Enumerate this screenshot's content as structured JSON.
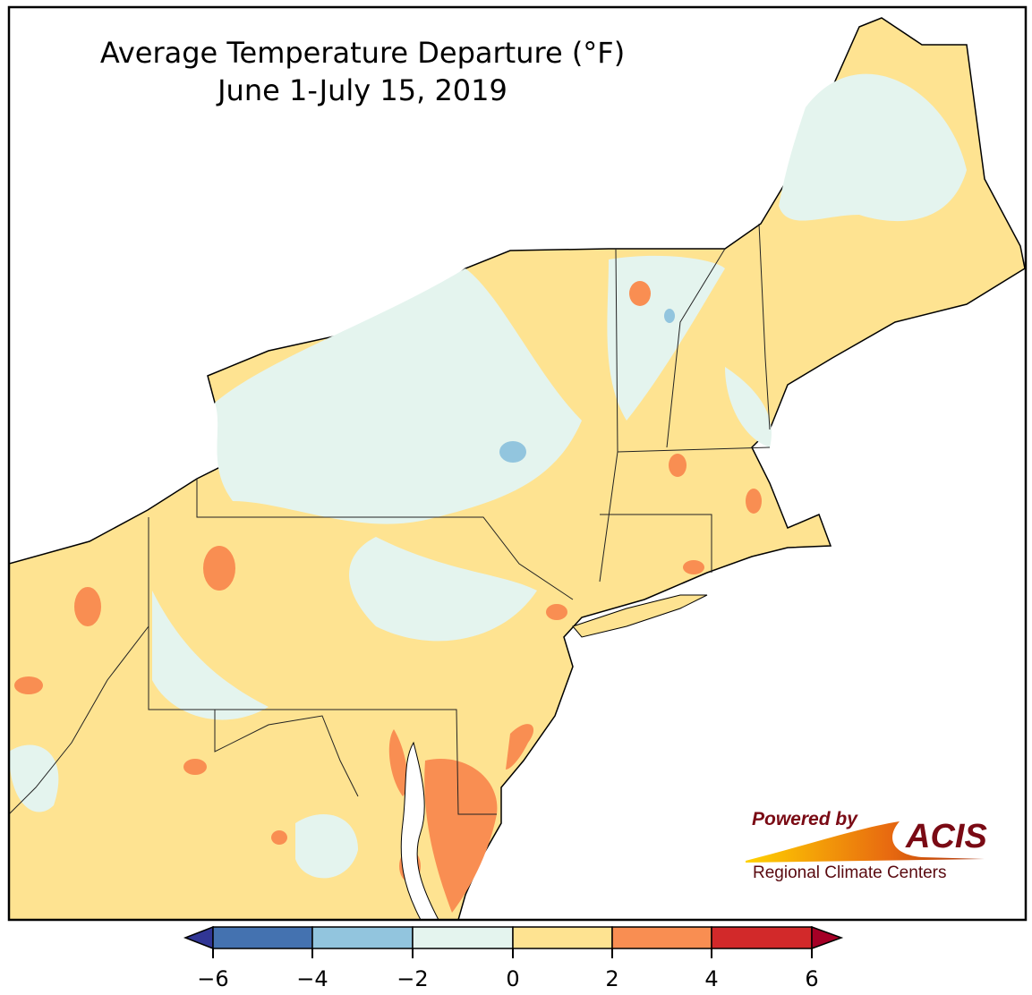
{
  "title": {
    "line1": "Average Temperature Departure (°F)",
    "line2": "June 1-July 15, 2019"
  },
  "colorbar": {
    "ticks": [
      "−6",
      "−4",
      "−2",
      "0",
      "2",
      "4",
      "6"
    ],
    "colors": [
      "#313695",
      "#4472b0",
      "#92c5de",
      "#e4f4ee",
      "#fee391",
      "#f98e52",
      "#d2292a",
      "#a50026"
    ]
  },
  "logo": {
    "line1": "Powered by",
    "line2": "ACIS",
    "line3": "Regional Climate Centers"
  }
}
